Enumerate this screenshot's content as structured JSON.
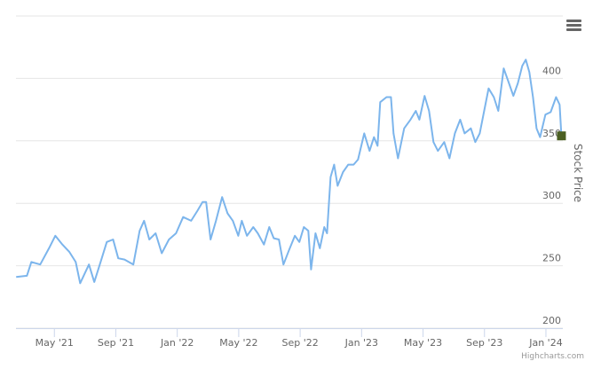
{
  "chart_data": {
    "type": "line",
    "y_axis_title": "Stock Price",
    "credits": "Highcharts.com",
    "x": [
      1.51,
      2.21,
      2.5,
      3.08,
      3.65,
      4.06,
      4.52,
      4.98,
      5.39,
      5.68,
      6.25,
      6.6,
      7.01,
      7.41,
      7.82,
      8.16,
      8.57,
      9.14,
      9.55,
      9.84,
      10.18,
      10.59,
      10.99,
      11.46,
      11.92,
      12.38,
      12.9,
      13.31,
      13.65,
      13.88,
      14.17,
      14.52,
      14.92,
      15.27,
      15.62,
      15.97,
      16.2,
      16.54,
      16.95,
      17.24,
      17.64,
      17.99,
      18.28,
      18.62,
      18.91,
      19.26,
      19.66,
      19.95,
      20.24,
      20.53,
      20.71,
      21,
      21.28,
      21.57,
      21.75,
      21.98,
      22.21,
      22.44,
      22.79,
      23.13,
      23.48,
      23.77,
      24.17,
      24.52,
      24.81,
      25.04,
      25.21,
      25.62,
      25.91,
      26.08,
      26.37,
      26.77,
      27.18,
      27.53,
      27.76,
      28.1,
      28.39,
      28.68,
      28.97,
      29.38,
      29.72,
      30.07,
      30.42,
      30.71,
      31.11,
      31.4,
      31.69,
      31.98,
      32.27,
      32.61,
      32.9,
      33.25,
      33.6,
      33.88,
      34.17,
      34.46,
      34.69,
      34.92,
      35.16,
      35.39,
      35.62,
      35.97,
      36.31,
      36.66,
      36.89,
      37.01
    ],
    "series": [
      {
        "name": "Stock Price",
        "color": "#7cb5ec",
        "values": [
          241,
          242,
          253,
          251,
          264,
          274,
          267,
          261,
          253,
          236,
          251,
          237,
          253,
          269,
          271,
          256,
          255,
          251,
          278,
          286,
          271,
          276,
          260,
          271,
          276,
          289,
          286,
          294,
          301,
          301,
          271,
          286,
          305,
          292,
          286,
          274,
          286,
          274,
          281,
          276,
          267,
          281,
          272,
          271,
          251,
          262,
          274,
          269,
          281,
          278,
          247,
          276,
          264,
          281,
          276,
          321,
          331,
          314,
          325,
          331,
          331,
          335,
          356,
          342,
          353,
          346,
          381,
          385,
          385,
          356,
          336,
          360,
          367,
          374,
          367,
          386,
          374,
          349,
          342,
          349,
          336,
          356,
          367,
          356,
          360,
          349,
          356,
          374,
          392,
          385,
          374,
          408,
          396,
          386,
          396,
          410,
          415,
          405,
          385,
          360,
          353,
          371,
          373,
          385,
          379,
          354
        ]
      }
    ],
    "last_marker_color": "#4b5f22",
    "xlim": [
      1.5,
      37.1
    ],
    "xticks": [
      {
        "value": 4,
        "label": "May '21"
      },
      {
        "value": 8,
        "label": "Sep '21"
      },
      {
        "value": 12,
        "label": "Jan '22"
      },
      {
        "value": 16,
        "label": "May '22"
      },
      {
        "value": 20,
        "label": "Sep '22"
      },
      {
        "value": 24,
        "label": "Jan '23"
      },
      {
        "value": 28,
        "label": "May '23"
      },
      {
        "value": 32,
        "label": "Sep '23"
      },
      {
        "value": 36,
        "label": "Jan '24"
      }
    ],
    "ylim": [
      200,
      450
    ],
    "yticks": [
      200,
      250,
      300,
      350,
      400
    ],
    "grid": true
  }
}
